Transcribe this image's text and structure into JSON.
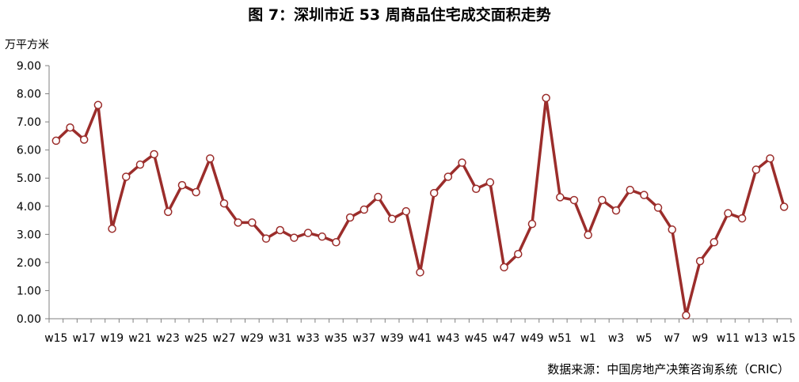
{
  "chart_data": {
    "type": "line",
    "title": "图 7：深圳市近 53 周商品住宅成交面积走势",
    "ylabel": "万平方米",
    "source": "数据来源：中国房地产决策咨询系统（CRIC）",
    "ylim": [
      0,
      9
    ],
    "yticks": [
      "0.00",
      "1.00",
      "2.00",
      "3.00",
      "4.00",
      "5.00",
      "6.00",
      "7.00",
      "8.00",
      "9.00"
    ],
    "x": [
      "w15",
      "w16",
      "w17",
      "w18",
      "w19",
      "w20",
      "w21",
      "w22",
      "w23",
      "w24",
      "w25",
      "w26",
      "w27",
      "w28",
      "w29",
      "w30",
      "w31",
      "w32",
      "w33",
      "w34",
      "w35",
      "w36",
      "w37",
      "w38",
      "w39",
      "w40",
      "w41",
      "w42",
      "w43",
      "w44",
      "w45",
      "w46",
      "w47",
      "w48",
      "w49",
      "w50",
      "w51",
      "w52",
      "w1",
      "w2",
      "w3",
      "w4",
      "w5",
      "w6",
      "w7",
      "w8",
      "w9",
      "w10",
      "w11",
      "w12",
      "w13",
      "w14",
      "w15"
    ],
    "xtick_labels": [
      "w15",
      "w17",
      "w19",
      "w21",
      "w23",
      "w25",
      "w27",
      "w29",
      "w31",
      "w33",
      "w35",
      "w37",
      "w39",
      "w41",
      "w43",
      "w45",
      "w47",
      "w49",
      "w51",
      "w1",
      "w3",
      "w5",
      "w7",
      "w9",
      "w11",
      "w13",
      "w15"
    ],
    "series": [
      {
        "values": [
          6.33,
          6.8,
          6.37,
          7.6,
          3.2,
          5.05,
          5.48,
          5.85,
          3.8,
          4.75,
          4.5,
          5.7,
          4.1,
          3.42,
          3.42,
          2.85,
          3.15,
          2.88,
          3.05,
          2.92,
          2.72,
          3.6,
          3.88,
          4.33,
          3.55,
          3.82,
          1.65,
          4.47,
          5.05,
          5.55,
          4.62,
          4.85,
          1.83,
          2.3,
          3.37,
          7.85,
          4.32,
          4.22,
          2.98,
          4.22,
          3.85,
          4.58,
          4.4,
          3.95,
          3.17,
          0.12,
          2.05,
          2.72,
          3.75,
          3.57,
          5.3,
          5.7,
          3.98
        ]
      }
    ],
    "colors": {
      "line": "#9b2d2b",
      "marker_fill": "#ffffff",
      "axis": "#808080"
    }
  }
}
